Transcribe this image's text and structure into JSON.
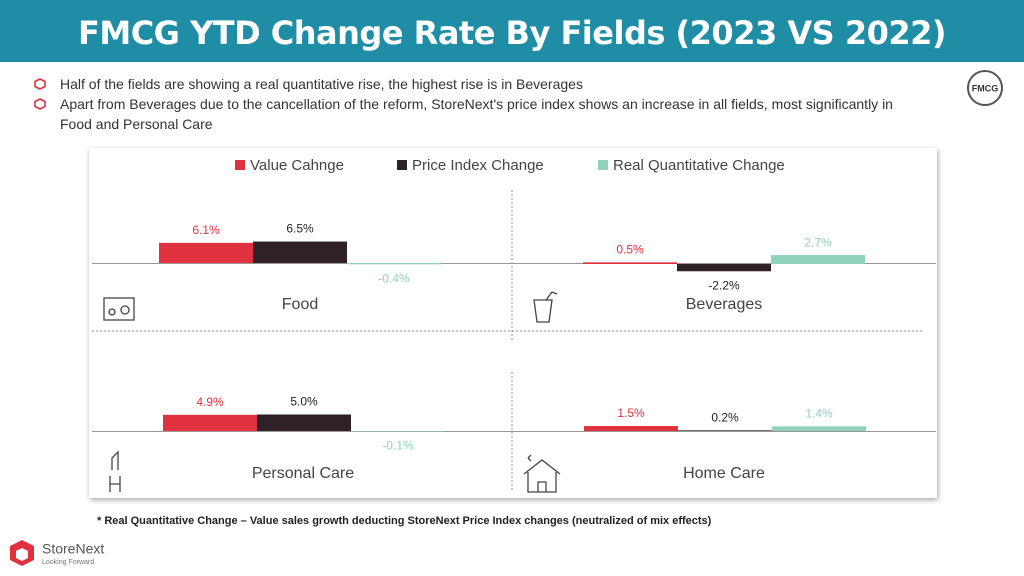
{
  "chart_data": {
    "type": "bar",
    "title": "FMCG YTD Change Rate By Fields (2023 VS 2022)",
    "categories": [
      "Food",
      "Beverages",
      "Personal Care",
      "Home Care"
    ],
    "series": [
      {
        "name": "Value Cahnge",
        "color": "#e0313f",
        "values": [
          6.1,
          0.5,
          4.9,
          1.5
        ],
        "value_labels": [
          "6.1%",
          "0.5%",
          "4.9%",
          "1.5%"
        ]
      },
      {
        "name": "Price Index Change",
        "color": "#2e2228",
        "values": [
          6.5,
          -2.2,
          5.0,
          0.2
        ],
        "value_labels": [
          "6.5%",
          "-2.2%",
          "5.0%",
          "0.2%"
        ]
      },
      {
        "name": "Real Quantitative Change",
        "color": "#8fd1bd",
        "values": [
          -0.4,
          2.7,
          -0.1,
          1.4
        ],
        "value_labels": [
          "-0.4%",
          "2.7%",
          "-0.1%",
          "1.4%"
        ]
      }
    ]
  },
  "bullets": [
    "Half of the fields are showing a real quantitative rise, the highest rise is in Beverages",
    "Apart from Beverages due to the cancellation of the reform, StoreNext's price index shows an increase in all fields, most significantly in Food and Personal Care"
  ],
  "footnote": "* Real Quantitative Change – Value sales growth deducting StoreNext Price Index changes (neutralized of mix effects)",
  "badge": "FMCG",
  "logo": {
    "name": "StoreNext",
    "tagline": "Looking Forward"
  }
}
